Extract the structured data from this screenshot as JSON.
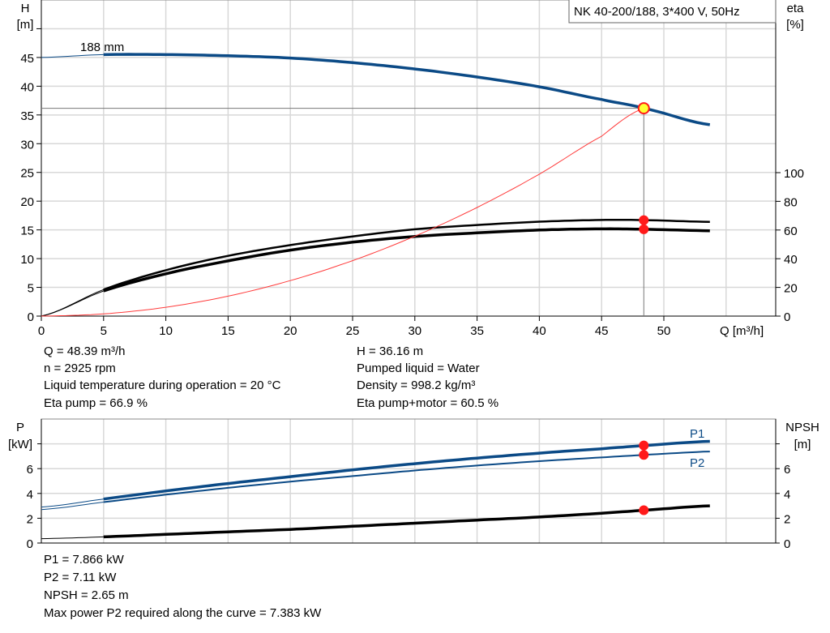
{
  "chart_data": [
    {
      "type": "line",
      "title": "NK 40-200/188, 3*400 V, 50Hz",
      "xlabel": "Q [m³/h]",
      "ylabel": [
        "H",
        "[m]"
      ],
      "y2label": [
        "eta",
        "[%]"
      ],
      "xlim": [
        0,
        59
      ],
      "ylim": [
        0,
        55
      ],
      "y2lim": [
        0,
        124
      ],
      "xticks": [
        0,
        5,
        10,
        15,
        20,
        25,
        30,
        35,
        40,
        45,
        50
      ],
      "yticks": [
        0,
        5,
        10,
        15,
        20,
        25,
        30,
        35,
        40,
        45
      ],
      "y2ticks": [
        0,
        20,
        40,
        60,
        80,
        100
      ],
      "grid": true,
      "curve_label": "188 mm",
      "series": [
        {
          "key": "H",
          "axis": "left",
          "color": "#0b4a86",
          "x": [
            0,
            5,
            10,
            15,
            20,
            25,
            30,
            35,
            40,
            45,
            48.39,
            53.7
          ],
          "y": [
            45.0,
            45.5,
            45.5,
            45.3,
            44.9,
            44.1,
            43.0,
            41.6,
            39.9,
            37.7,
            36.16,
            33.3
          ]
        },
        {
          "key": "eta_pump",
          "axis": "right",
          "color": "#000000",
          "x": [
            0,
            5,
            10,
            15,
            20,
            25,
            30,
            35,
            40,
            45,
            48.39,
            53.7
          ],
          "y": [
            0,
            18.5,
            32,
            42,
            49.5,
            55.5,
            60.5,
            63.5,
            65.8,
            67,
            66.9,
            65.7
          ]
        },
        {
          "key": "eta_pump_motor",
          "axis": "right",
          "color": "#000000",
          "x": [
            0,
            5,
            10,
            15,
            20,
            25,
            30,
            35,
            40,
            45,
            48.39,
            53.7
          ],
          "y": [
            0,
            17.5,
            29.5,
            38.5,
            46,
            51.5,
            55.5,
            58,
            60,
            60.8,
            60.5,
            59.5
          ]
        },
        {
          "key": "system",
          "axis": "left",
          "color": "#ff3b3b",
          "x": [
            0,
            5,
            10,
            15,
            20,
            25,
            30,
            35,
            40,
            45,
            48.39
          ],
          "y": [
            0,
            0.39,
            1.54,
            3.47,
            6.18,
            9.65,
            13.9,
            18.9,
            24.7,
            31.3,
            36.16
          ]
        }
      ],
      "operating_point": {
        "Q": 48.39,
        "H": 36.16,
        "eta_pump": 66.9,
        "eta_pump_motor": 60.5
      }
    },
    {
      "type": "line",
      "ylabel": [
        "P",
        "[kW]"
      ],
      "y2label": [
        "NPSH",
        "[m]"
      ],
      "xlim": [
        0,
        59
      ],
      "ylim": [
        0,
        10
      ],
      "yticks": [
        0,
        2,
        4,
        6,
        8
      ],
      "y2ticks": [
        0,
        2,
        4,
        6,
        8
      ],
      "grid": true,
      "series": [
        {
          "name": "P1",
          "axis": "left",
          "color": "#0b4a86",
          "x": [
            0,
            5,
            10,
            15,
            20,
            25,
            30,
            35,
            40,
            45,
            48.39,
            53.7
          ],
          "y": [
            2.9,
            3.55,
            4.2,
            4.8,
            5.35,
            5.9,
            6.4,
            6.85,
            7.25,
            7.6,
            7.866,
            8.2
          ]
        },
        {
          "name": "P2",
          "axis": "left",
          "color": "#0b4a86",
          "x": [
            0,
            5,
            10,
            15,
            20,
            25,
            30,
            35,
            40,
            45,
            48.39,
            53.7
          ],
          "y": [
            2.7,
            3.3,
            3.9,
            4.45,
            4.95,
            5.4,
            5.85,
            6.25,
            6.6,
            6.9,
            7.11,
            7.38
          ]
        },
        {
          "key": "NPSH",
          "axis": "right",
          "color": "#000000",
          "x": [
            0,
            5,
            10,
            15,
            20,
            25,
            30,
            35,
            40,
            45,
            48.39,
            53.7
          ],
          "y": [
            0.35,
            0.5,
            0.7,
            0.9,
            1.1,
            1.35,
            1.6,
            1.85,
            2.1,
            2.4,
            2.65,
            3.0
          ]
        }
      ],
      "operating_point": {
        "Q": 48.39,
        "P1": 7.866,
        "P2": 7.11,
        "NPSH": 2.65
      }
    }
  ],
  "info_top": {
    "left": [
      "Q = 48.39 m³/h",
      "n = 2925 rpm",
      "Liquid temperature during operation = 20 °C",
      "Eta pump = 66.9 %"
    ],
    "right": [
      "H = 36.16 m",
      "Pumped liquid = Water",
      "Density = 998.2 kg/m³",
      "Eta pump+motor = 60.5 %"
    ]
  },
  "info_bottom": [
    "P1 = 7.866 kW",
    "P2 = 7.11 kW",
    "NPSH = 2.65 m",
    "Max power P2 required along the curve = 7.383 kW"
  ]
}
